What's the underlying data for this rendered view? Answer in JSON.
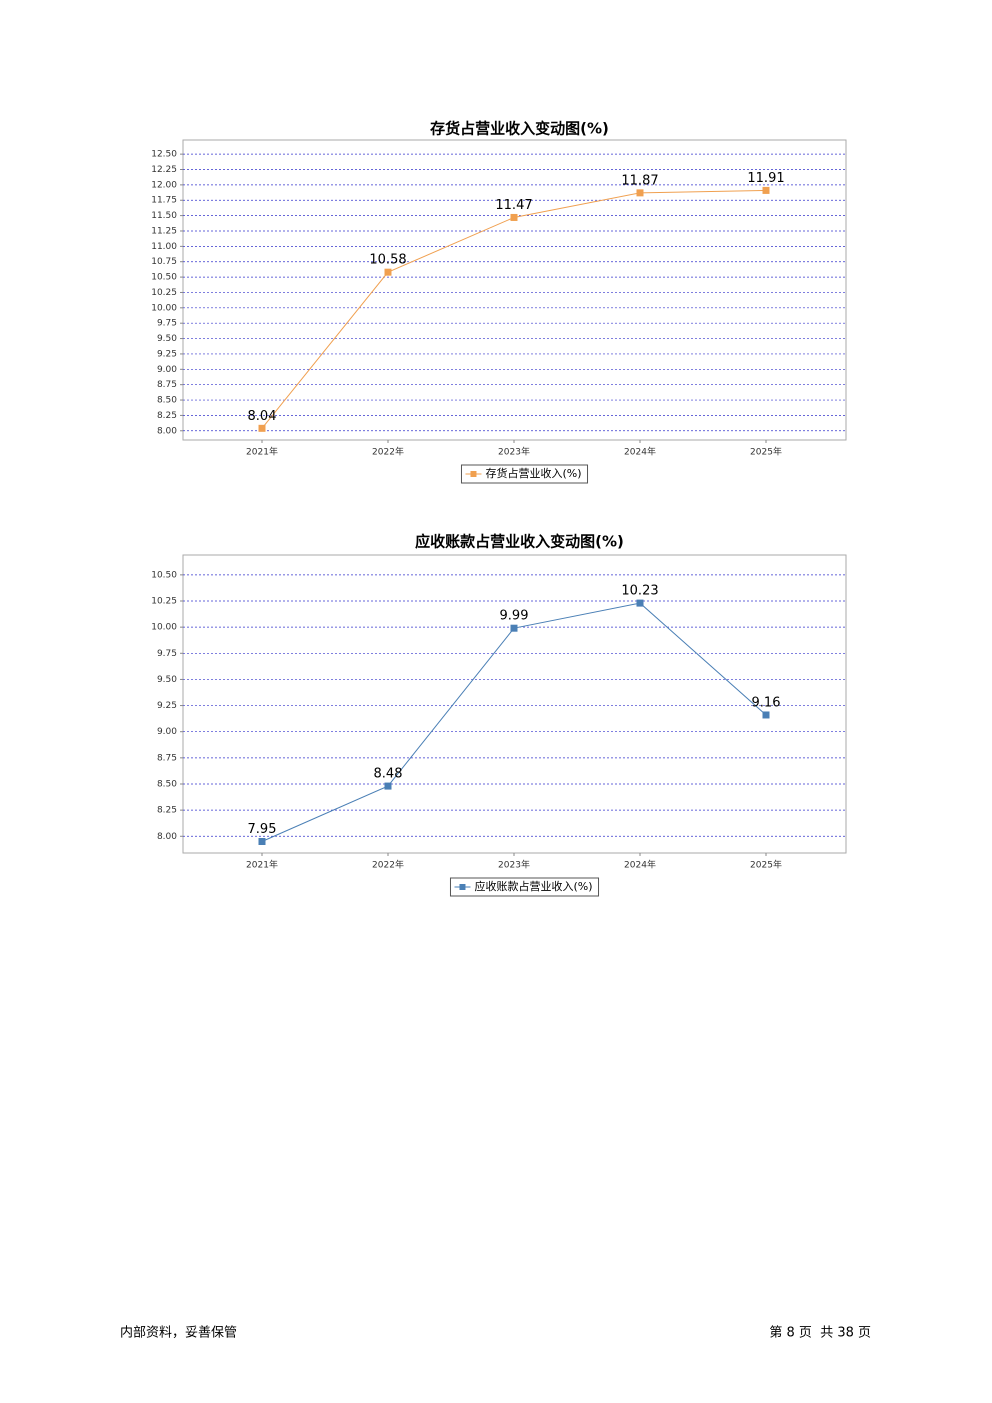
{
  "chart_data": [
    {
      "type": "line",
      "title": "存货占营业收入变动图(%)",
      "categories": [
        "2021年",
        "2022年",
        "2023年",
        "2024年",
        "2025年"
      ],
      "series": [
        {
          "name": "存货占营业收入(%)",
          "color": "#f0a050",
          "values": [
            8.04,
            10.58,
            11.47,
            11.87,
            11.91
          ]
        }
      ],
      "ylim": [
        7.85,
        12.73
      ],
      "yticks": [
        {
          "value": 8,
          "label": "8.00"
        },
        {
          "value": 8.25,
          "label": "8.25"
        },
        {
          "value": 8.5,
          "label": "8.50"
        },
        {
          "value": 8.75,
          "label": "8.75"
        },
        {
          "value": 9,
          "label": "9.00"
        },
        {
          "value": 9.25,
          "label": "9.25"
        },
        {
          "value": 9.5,
          "label": "9.50"
        },
        {
          "value": 9.75,
          "label": "9.75"
        },
        {
          "value": 10,
          "label": "10.00"
        },
        {
          "value": 10.25,
          "label": "10.25"
        },
        {
          "value": 10.5,
          "label": "10.50"
        },
        {
          "value": 10.75,
          "label": "10.75"
        },
        {
          "value": 11,
          "label": "11.00"
        },
        {
          "value": 11.25,
          "label": "11.25"
        },
        {
          "value": 11.5,
          "label": "11.50"
        },
        {
          "value": 11.75,
          "label": "11.75"
        },
        {
          "value": 12,
          "label": "12.00"
        },
        {
          "value": 12.25,
          "label": "12.25"
        },
        {
          "value": 12.5,
          "label": "12.50"
        }
      ],
      "grid": true,
      "legend": "bottom"
    },
    {
      "type": "line",
      "title": "应收账款占营业收入变动图(%)",
      "categories": [
        "2021年",
        "2022年",
        "2023年",
        "2024年",
        "2025年"
      ],
      "series": [
        {
          "name": "应收账款占营业收入(%)",
          "color": "#4a7fb5",
          "values": [
            7.95,
            8.48,
            9.99,
            10.23,
            9.16
          ]
        }
      ],
      "ylim": [
        7.84,
        10.69
      ],
      "yticks": [
        {
          "value": 8,
          "label": "8.00"
        },
        {
          "value": 8.25,
          "label": "8.25"
        },
        {
          "value": 8.5,
          "label": "8.50"
        },
        {
          "value": 8.75,
          "label": "8.75"
        },
        {
          "value": 9,
          "label": "9.00"
        },
        {
          "value": 9.25,
          "label": "9.25"
        },
        {
          "value": 9.5,
          "label": "9.50"
        },
        {
          "value": 9.75,
          "label": "9.75"
        },
        {
          "value": 10,
          "label": "10.00"
        },
        {
          "value": 10.25,
          "label": "10.25"
        },
        {
          "value": 10.5,
          "label": "10.50"
        }
      ],
      "grid": true,
      "legend": "bottom"
    }
  ],
  "footer": {
    "left": "内部资料，妥善保管",
    "right": "第 8 页  共 38 页"
  }
}
